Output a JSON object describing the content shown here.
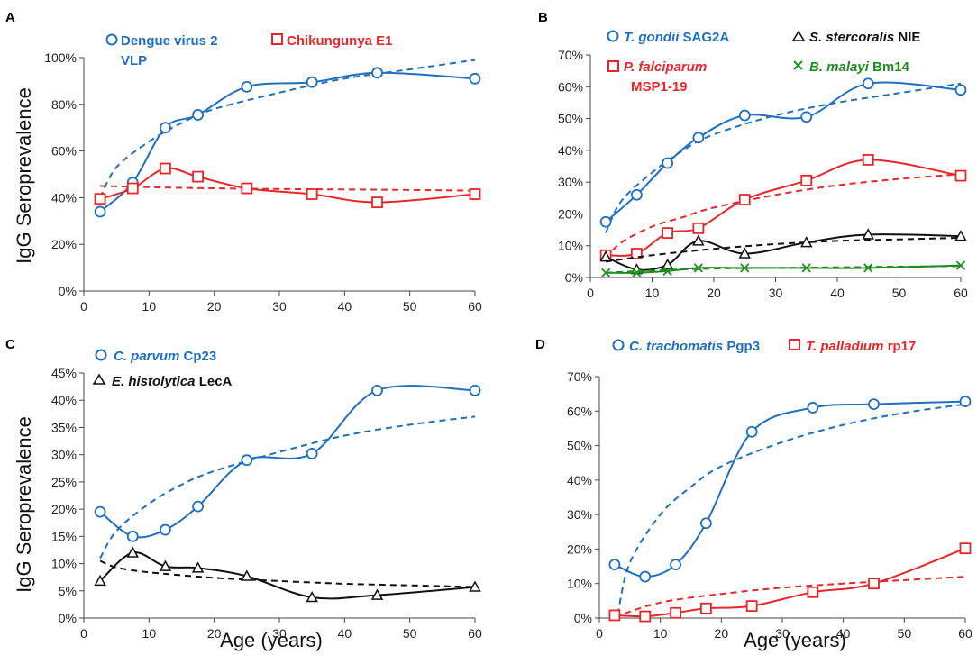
{
  "figure": {
    "xlabel": "Age (years)",
    "ylabel": "IgG Seroprevalence"
  },
  "chart_data": [
    {
      "panel": "A",
      "type": "line",
      "xlim": [
        0,
        60
      ],
      "xticks": [
        0,
        10,
        20,
        30,
        40,
        50,
        60
      ],
      "ylim": [
        0,
        100
      ],
      "yticks": [
        0,
        20,
        40,
        60,
        80,
        100
      ],
      "ytick_suffix": "%",
      "ylabel": "IgG Seroprevalence",
      "xlabel": "",
      "series": [
        {
          "name": "Dengue virus 2",
          "name_italic": "",
          "name_rest": "Dengue virus 2",
          "name_line2": "VLP",
          "color": "#1f6fbf",
          "marker": "circle",
          "x": [
            2.5,
            7.5,
            12.5,
            17.5,
            25,
            35,
            45,
            60
          ],
          "values": [
            34,
            46.5,
            70,
            75.5,
            87.5,
            89.5,
            93.5,
            91
          ],
          "fit_x": [
            2.5,
            5,
            10,
            15,
            20,
            30,
            40,
            50,
            60
          ],
          "fit": [
            40,
            53,
            64,
            72,
            78,
            85,
            91,
            95,
            99
          ]
        },
        {
          "name": "Chikungunya E1",
          "name_italic": "",
          "name_rest": "Chikungunya E1",
          "name_line2": "",
          "color": "#e8262a",
          "marker": "square",
          "x": [
            2.5,
            7.5,
            12.5,
            17.5,
            25,
            35,
            45,
            60
          ],
          "values": [
            39.5,
            44,
            52.5,
            49,
            44,
            41.5,
            38,
            41.5
          ],
          "fit_x": [
            2.5,
            10,
            20,
            30,
            40,
            50,
            60
          ],
          "fit": [
            45,
            44.5,
            44,
            43.7,
            43.5,
            43.3,
            43
          ]
        }
      ]
    },
    {
      "panel": "B",
      "type": "line",
      "xlim": [
        0,
        60
      ],
      "xticks": [
        0,
        10,
        20,
        30,
        40,
        50,
        60
      ],
      "ylim": [
        0,
        70
      ],
      "yticks": [
        0,
        10,
        20,
        30,
        40,
        50,
        60,
        70
      ],
      "ytick_suffix": "%",
      "ylabel": "",
      "xlabel": "",
      "series": [
        {
          "name": "T. gondii SAG2A",
          "name_italic": "T. gondii",
          "name_rest": " SAG2A",
          "name_line2": "",
          "color": "#1f6fbf",
          "marker": "circle",
          "x": [
            2.5,
            7.5,
            12.5,
            17.5,
            25,
            35,
            45,
            60
          ],
          "values": [
            17.5,
            26,
            36,
            44,
            51,
            50.5,
            61,
            59
          ],
          "fit_x": [
            2.5,
            5,
            10,
            15,
            20,
            30,
            40,
            50,
            60
          ],
          "fit": [
            14,
            24,
            33,
            40,
            45,
            51,
            55,
            58,
            61
          ]
        },
        {
          "name": "P. falciparum MSP1-19",
          "name_italic": "P. falciparum",
          "name_rest": "",
          "name_line2": "MSP1-19",
          "color": "#e8262a",
          "marker": "square",
          "x": [
            2.5,
            7.5,
            12.5,
            17.5,
            25,
            35,
            45,
            60
          ],
          "values": [
            7,
            7.5,
            14,
            15.5,
            24.5,
            30.5,
            37,
            32
          ],
          "fit_x": [
            2.5,
            5,
            10,
            15,
            20,
            30,
            40,
            50,
            60
          ],
          "fit": [
            6,
            11,
            16,
            19,
            22,
            26,
            29,
            31,
            32.5
          ]
        },
        {
          "name": "S. stercoralis NIE",
          "name_italic": "S. stercoralis",
          "name_rest": " NIE",
          "name_line2": "",
          "color": "#111111",
          "marker": "triangle",
          "x": [
            2.5,
            7.5,
            12.5,
            17.5,
            25,
            35,
            45,
            60
          ],
          "values": [
            6.5,
            2.5,
            4,
            11.5,
            7.5,
            11,
            13.5,
            13
          ],
          "fit_x": [
            2.5,
            10,
            20,
            30,
            40,
            50,
            60
          ],
          "fit": [
            5,
            7,
            9,
            10.5,
            11.5,
            12,
            12.5
          ]
        },
        {
          "name": "B. malayi Bm14",
          "name_italic": "B. malayi",
          "name_rest": " Bm14",
          "name_line2": "",
          "color": "#1e8c1e",
          "marker": "x",
          "x": [
            2.5,
            7.5,
            12.5,
            17.5,
            25,
            35,
            45,
            60
          ],
          "values": [
            1.5,
            1.5,
            2,
            3,
            3,
            3,
            3,
            3.8
          ],
          "fit_x": [
            2.5,
            10,
            20,
            30,
            40,
            50,
            60
          ],
          "fit": [
            1.5,
            2.2,
            2.8,
            3,
            3.2,
            3.4,
            3.6
          ]
        }
      ]
    },
    {
      "panel": "C",
      "type": "line",
      "xlim": [
        0,
        60
      ],
      "xticks": [
        0,
        10,
        20,
        30,
        40,
        50,
        60
      ],
      "ylim": [
        0,
        45
      ],
      "yticks": [
        0,
        5,
        10,
        15,
        20,
        25,
        30,
        35,
        40,
        45
      ],
      "ytick_suffix": "%",
      "ylabel": "IgG Seroprevalence",
      "xlabel": "Age (years)",
      "series": [
        {
          "name": "C. parvum Cp23",
          "name_italic": "C. parvum",
          "name_rest": " Cp23",
          "name_line2": "",
          "color": "#1f6fbf",
          "marker": "circle",
          "x": [
            2.5,
            7.5,
            12.5,
            17.5,
            25,
            35,
            45,
            60
          ],
          "values": [
            19.5,
            15,
            16.2,
            20.5,
            29,
            30.2,
            41.8,
            41.8
          ],
          "fit_x": [
            2.5,
            5,
            10,
            15,
            20,
            30,
            40,
            50,
            60
          ],
          "fit": [
            11,
            16,
            21,
            24.5,
            27,
            30.5,
            33.5,
            35.5,
            37
          ]
        },
        {
          "name": "E. histolytica LecA",
          "name_italic": "E. histolytica",
          "name_rest": " LecA",
          "name_line2": "",
          "color": "#111111",
          "marker": "triangle",
          "x": [
            2.5,
            7.5,
            12.5,
            17.5,
            25,
            35,
            45,
            60
          ],
          "values": [
            6.8,
            12,
            9.5,
            9.2,
            7.7,
            3.8,
            4.2,
            5.7
          ],
          "fit_x": [
            2.5,
            5,
            10,
            20,
            30,
            40,
            50,
            60
          ],
          "fit": [
            10.5,
            9.3,
            8.4,
            7.4,
            6.8,
            6.3,
            6,
            5.7
          ]
        }
      ]
    },
    {
      "panel": "D",
      "type": "line",
      "xlim": [
        0,
        60
      ],
      "xticks": [
        0,
        10,
        20,
        30,
        40,
        50,
        60
      ],
      "ylim": [
        0,
        70
      ],
      "yticks": [
        0,
        10,
        20,
        30,
        40,
        50,
        60,
        70
      ],
      "ytick_suffix": "%",
      "ylabel": "",
      "xlabel": "Age (years)",
      "series": [
        {
          "name": "C. trachomatis Pgp3",
          "name_italic": "C. trachomatis",
          "name_rest": " Pgp3",
          "name_line2": "",
          "color": "#1f6fbf",
          "marker": "circle",
          "x": [
            2.5,
            7.5,
            12.5,
            17.5,
            25,
            35,
            45,
            60
          ],
          "values": [
            15.5,
            12,
            15.5,
            27.5,
            54,
            61,
            62,
            62.8
          ],
          "fit_x": [
            3,
            5,
            10,
            15,
            20,
            30,
            40,
            50,
            60
          ],
          "fit": [
            1,
            16,
            30,
            38,
            44,
            51,
            56,
            59.5,
            62
          ]
        },
        {
          "name": "T. palladium rp17",
          "name_italic": "T. palladium",
          "name_rest": " rp17",
          "name_line2": "",
          "color": "#e8262a",
          "marker": "square",
          "x": [
            2.5,
            7.5,
            12.5,
            17.5,
            25,
            35,
            45,
            60
          ],
          "values": [
            0.8,
            0.5,
            1.5,
            2.8,
            3.5,
            7.5,
            10,
            20.2
          ],
          "fit_x": [
            2.5,
            10,
            20,
            30,
            40,
            50,
            60
          ],
          "fit": [
            0.3,
            4.5,
            7,
            8.8,
            10,
            11,
            12
          ]
        }
      ]
    }
  ]
}
